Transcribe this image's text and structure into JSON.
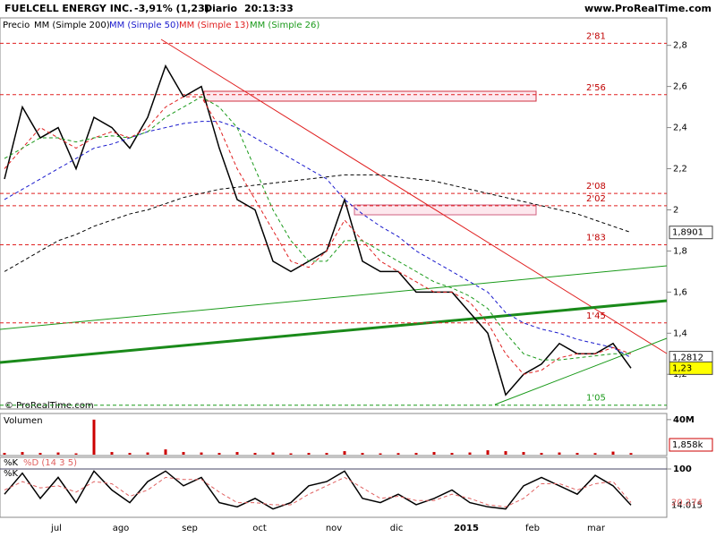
{
  "header": {
    "title": "FUELCELL ENERGY INC.",
    "change": "-3,91% (1,23)",
    "period": "Diario",
    "time": "20:13:33",
    "site": "www.ProRealTime.com"
  },
  "copyright": "© ProRealTime.com",
  "months": [
    "jul",
    "ago",
    "sep",
    "oct",
    "nov",
    "dic",
    "2015",
    "feb",
    "mar"
  ],
  "chart_data": [
    {
      "type": "line",
      "series": [
        {
          "name": "Precio",
          "color": "#000000",
          "values": [
            2.15,
            2.5,
            2.35,
            2.4,
            2.2,
            2.45,
            2.4,
            2.3,
            2.45,
            2.7,
            2.55,
            2.6,
            2.3,
            2.05,
            2.0,
            1.75,
            1.7,
            1.75,
            1.8,
            2.05,
            1.75,
            1.7,
            1.7,
            1.6,
            1.6,
            1.6,
            1.5,
            1.4,
            1.1,
            1.2,
            1.25,
            1.35,
            1.3,
            1.3,
            1.35,
            1.23
          ]
        },
        {
          "name": "MM (Simple 200)",
          "color": "#000000",
          "dash": true,
          "values": [
            1.7,
            1.75,
            1.8,
            1.85,
            1.88,
            1.92,
            1.95,
            1.98,
            2.0,
            2.03,
            2.06,
            2.08,
            2.1,
            2.11,
            2.12,
            2.13,
            2.14,
            2.15,
            2.16,
            2.17,
            2.17,
            2.17,
            2.16,
            2.15,
            2.14,
            2.12,
            2.1,
            2.08,
            2.06,
            2.04,
            2.02,
            2.0,
            1.98,
            1.95,
            1.92,
            1.8901
          ]
        },
        {
          "name": "MM (Simple 50)",
          "color": "#1a1acd",
          "dash": true,
          "values": [
            2.05,
            2.1,
            2.15,
            2.2,
            2.25,
            2.3,
            2.32,
            2.35,
            2.38,
            2.4,
            2.42,
            2.43,
            2.43,
            2.4,
            2.35,
            2.3,
            2.25,
            2.2,
            2.15,
            2.05,
            1.98,
            1.92,
            1.87,
            1.8,
            1.75,
            1.7,
            1.65,
            1.6,
            1.5,
            1.45,
            1.42,
            1.4,
            1.37,
            1.35,
            1.33,
            1.2812
          ]
        },
        {
          "name": "MM (Simple 13)",
          "color": "#e02020",
          "dash": true,
          "values": [
            2.2,
            2.3,
            2.4,
            2.35,
            2.3,
            2.35,
            2.38,
            2.35,
            2.4,
            2.5,
            2.55,
            2.55,
            2.4,
            2.2,
            2.05,
            1.9,
            1.75,
            1.72,
            1.8,
            1.95,
            1.85,
            1.75,
            1.7,
            1.65,
            1.6,
            1.6,
            1.55,
            1.45,
            1.3,
            1.2,
            1.22,
            1.28,
            1.3,
            1.3,
            1.33,
            1.3
          ]
        },
        {
          "name": "MM (Simple 26)",
          "color": "#1a9a1a",
          "dash": true,
          "values": [
            2.25,
            2.3,
            2.35,
            2.35,
            2.33,
            2.35,
            2.36,
            2.35,
            2.38,
            2.45,
            2.5,
            2.55,
            2.5,
            2.4,
            2.2,
            2.0,
            1.85,
            1.75,
            1.75,
            1.85,
            1.85,
            1.8,
            1.75,
            1.7,
            1.65,
            1.62,
            1.58,
            1.52,
            1.4,
            1.3,
            1.27,
            1.27,
            1.28,
            1.29,
            1.3,
            1.3
          ]
        }
      ],
      "ylim": [
        1.04,
        2.89
      ],
      "yticks": [
        {
          "value": 1.2,
          "label": "1,2"
        },
        {
          "value": 1.4,
          "label": "1,4"
        },
        {
          "value": 1.6,
          "label": "1,6"
        },
        {
          "value": 1.8,
          "label": "1,8"
        },
        2,
        {
          "value": 2.2,
          "label": "2,2"
        },
        {
          "value": 2.4,
          "label": "2,4"
        },
        {
          "value": 2.6,
          "label": "2,6"
        },
        {
          "value": 2.8,
          "label": "2,8"
        }
      ],
      "levels": [
        {
          "value": 2.81,
          "label": "2'81"
        },
        {
          "value": 2.56,
          "label": "2'56"
        },
        {
          "value": 2.08,
          "label": "2'08"
        },
        {
          "value": 2.02,
          "label": "2'02"
        },
        {
          "value": 1.83,
          "label": "1'83"
        },
        {
          "value": 1.45,
          "label": "1'45"
        },
        {
          "value": 1.05,
          "label": "1'05"
        }
      ],
      "markers": [
        {
          "value": 1.8901,
          "label": "1,8901",
          "color": "#ffffff"
        },
        {
          "value": 1.2812,
          "label": "1,2812",
          "color": "#ffffff"
        },
        {
          "value": 1.23,
          "label": "1,23",
          "color": "#ffff00"
        }
      ]
    },
    {
      "type": "bar",
      "title": "Volumen",
      "color": "#cc0000",
      "values": [
        2000000,
        3000000,
        2000000,
        2500000,
        1500000,
        40000000,
        3000000,
        2000000,
        2500000,
        6000000,
        3000000,
        2500000,
        2000000,
        3000000,
        2000000,
        2500000,
        1500000,
        2000000,
        2000000,
        4000000,
        2000000,
        1500000,
        1800000,
        2000000,
        3000000,
        2000000,
        2500000,
        5000000,
        4000000,
        3000000,
        2000000,
        2500000,
        2000000,
        1800000,
        3500000,
        1858000
      ],
      "value_labels": {
        "35": "1,858k"
      },
      "ylim": [
        0,
        47000000
      ],
      "yticks": [
        {
          "value": 40000000,
          "label": "40M"
        }
      ]
    },
    {
      "type": "line",
      "title": "%K",
      "series": [
        {
          "name": "%K",
          "color": "#000000",
          "values": [
            40,
            90,
            30,
            80,
            20,
            95,
            50,
            20,
            70,
            95,
            60,
            80,
            20,
            10,
            30,
            5,
            20,
            60,
            70,
            95,
            30,
            20,
            40,
            15,
            30,
            50,
            20,
            10,
            5,
            60,
            80,
            60,
            40,
            85,
            60,
            14.015
          ]
        },
        {
          "name": "%D (14 3 5)",
          "color": "#e06060",
          "dash": true,
          "values": [
            50,
            70,
            55,
            60,
            45,
            70,
            65,
            35,
            50,
            80,
            75,
            75,
            45,
            20,
            20,
            15,
            15,
            40,
            60,
            80,
            55,
            30,
            35,
            25,
            25,
            40,
            30,
            15,
            10,
            30,
            65,
            65,
            50,
            65,
            70,
            20.274
          ]
        }
      ],
      "ylim": [
        0,
        100
      ],
      "yticks": [
        100
      ]
    }
  ]
}
